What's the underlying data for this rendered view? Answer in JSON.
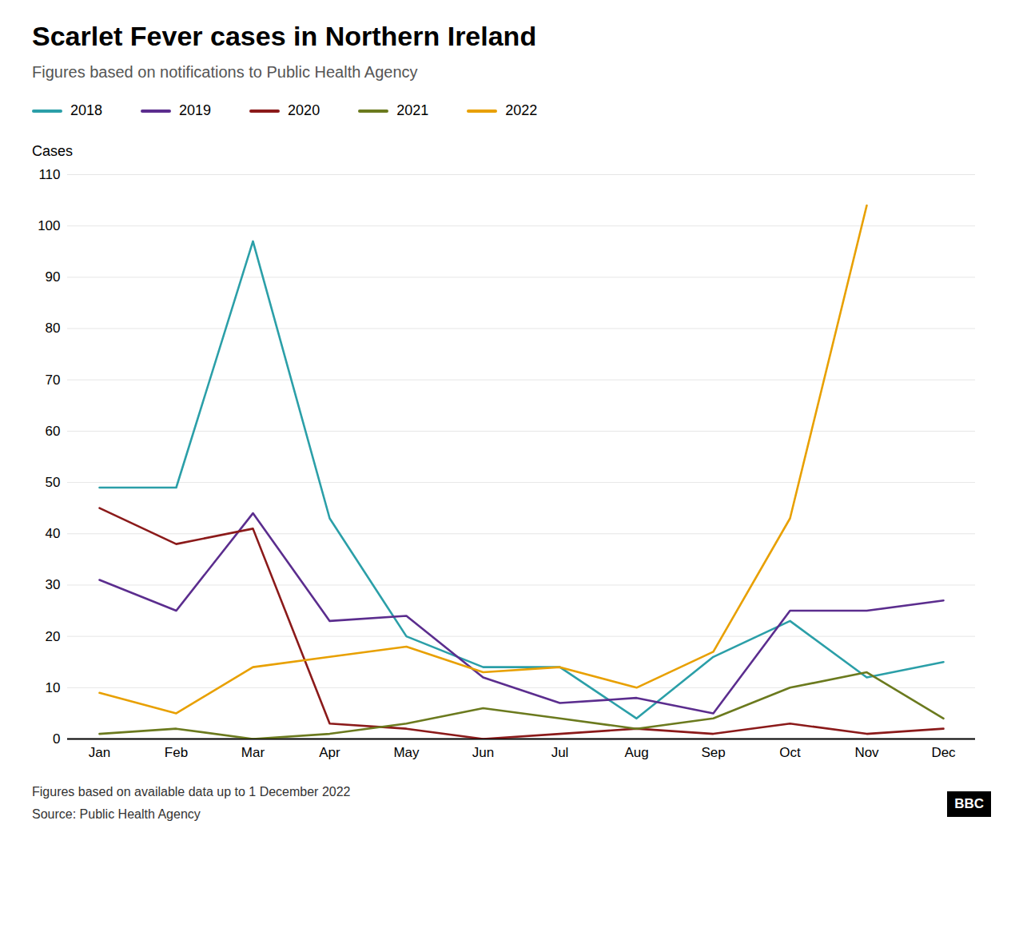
{
  "chart_data": {
    "type": "line",
    "title": "Scarlet Fever cases in Northern Ireland",
    "subtitle": "Figures based on notifications to Public Health Agency",
    "ylabel": "Cases",
    "annotations": [
      "Figures based on available data up to 1 December 2022",
      "Source: Public Health Agency",
      "BBC"
    ],
    "categories": [
      "Jan",
      "Feb",
      "Mar",
      "Apr",
      "May",
      "Jun",
      "Jul",
      "Aug",
      "Sep",
      "Oct",
      "Nov",
      "Dec"
    ],
    "series": [
      {
        "name": "2018",
        "color": "#2b9fa8",
        "values": [
          49,
          49,
          97,
          43,
          20,
          14,
          14,
          4,
          16,
          23,
          12,
          15
        ]
      },
      {
        "name": "2019",
        "color": "#5b2d8e",
        "values": [
          31,
          25,
          44,
          23,
          24,
          12,
          7,
          8,
          5,
          25,
          25,
          27
        ]
      },
      {
        "name": "2020",
        "color": "#8b1a1a",
        "values": [
          45,
          38,
          41,
          3,
          2,
          0,
          1,
          2,
          1,
          3,
          1,
          2
        ]
      },
      {
        "name": "2021",
        "color": "#6b7a1e",
        "values": [
          1,
          2,
          0,
          1,
          3,
          6,
          4,
          2,
          4,
          10,
          13,
          4
        ]
      },
      {
        "name": "2022",
        "color": "#e8a000",
        "values": [
          9,
          5,
          14,
          16,
          18,
          13,
          14,
          10,
          17,
          43,
          104,
          null
        ]
      }
    ],
    "ylim": [
      0,
      110
    ],
    "yticks": [
      0,
      10,
      20,
      30,
      40,
      50,
      60,
      70,
      80,
      90,
      100,
      110
    ],
    "grid": true,
    "legend": "top"
  }
}
